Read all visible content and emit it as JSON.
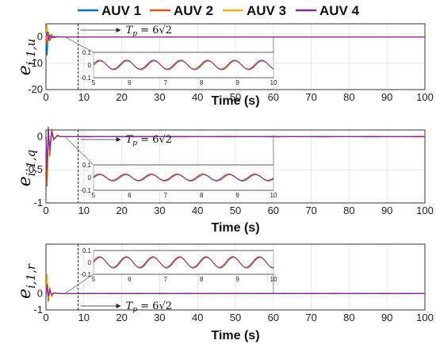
{
  "legend": {
    "placement": "top",
    "entries": [
      {
        "label": "AUV 1",
        "color": "#0072BD"
      },
      {
        "label": "AUV 2",
        "color": "#D95319"
      },
      {
        "label": "AUV 3",
        "color": "#EDB120"
      },
      {
        "label": "AUV 4",
        "color": "#7E2F8E"
      }
    ]
  },
  "annotation": {
    "text": "T",
    "sub": "p",
    "rest": " = 6√2",
    "x": 8.49
  },
  "chart_data": [
    {
      "type": "line",
      "ylabel": {
        "main": "e",
        "sub": "i,1,u"
      },
      "xlabel": "Time (s)",
      "xlim": [
        0,
        100
      ],
      "ylim": [
        -20,
        5
      ],
      "xticks": [
        0,
        10,
        20,
        30,
        40,
        50,
        60,
        70,
        80,
        90,
        100
      ],
      "yticks": [
        0,
        -10,
        -20
      ],
      "grid": true,
      "x": [
        0,
        0.3,
        0.6,
        1.0,
        1.5,
        2.0,
        3.0,
        4.0,
        6.0,
        8.49,
        20,
        40,
        60,
        80,
        100
      ],
      "series": [
        {
          "name": "AUV 1",
          "values": [
            0,
            -7,
            2,
            -1.5,
            0.8,
            -0.3,
            0.1,
            0,
            0,
            0,
            0,
            0,
            0,
            0,
            0
          ]
        },
        {
          "name": "AUV 2",
          "values": [
            0,
            -3,
            1.5,
            -0.8,
            0.5,
            -0.2,
            0.05,
            0,
            0,
            0,
            0,
            0,
            0,
            0,
            0
          ]
        },
        {
          "name": "AUV 3",
          "values": [
            0,
            5,
            -2,
            1,
            -0.5,
            0.2,
            0,
            0,
            0,
            0,
            0,
            0,
            0,
            0,
            0
          ]
        },
        {
          "name": "AUV 4",
          "values": [
            0,
            2,
            -1,
            0.5,
            -0.3,
            0.1,
            0,
            0,
            0,
            0,
            0,
            0,
            0,
            0,
            0
          ]
        }
      ],
      "inset": {
        "xlim": [
          5,
          10
        ],
        "ylim": [
          -0.1,
          0.1
        ],
        "xticks": [
          5,
          6,
          7,
          8,
          9,
          10
        ],
        "yticks": [
          0.1,
          0,
          -0.1
        ],
        "tick_labels_x": [
          "5",
          "6",
          "7",
          "8",
          "9",
          "10"
        ],
        "tick_labels_y": [
          "0.1",
          "0",
          "-0.1"
        ],
        "amplitude": 0.035,
        "period": 0.75
      }
    },
    {
      "type": "line",
      "ylabel": {
        "main": "e",
        "sub": "i,1,q"
      },
      "xlabel": "Time (s)",
      "xlim": [
        0,
        100
      ],
      "ylim": [
        -1,
        0.1
      ],
      "xticks": [
        0,
        10,
        20,
        30,
        40,
        50,
        60,
        70,
        80,
        90,
        100
      ],
      "yticks": [
        0,
        -0.5,
        -1
      ],
      "grid": true,
      "x": [
        0,
        0.3,
        0.6,
        1.0,
        1.5,
        2.0,
        3.0,
        4.0,
        6.0,
        8.49,
        20,
        40,
        60,
        80,
        100
      ],
      "series": [
        {
          "name": "AUV 1",
          "values": [
            0,
            -0.6,
            0.15,
            -0.25,
            0.1,
            -0.05,
            0.02,
            0,
            0,
            0,
            0,
            0,
            0,
            0,
            0
          ]
        },
        {
          "name": "AUV 2",
          "values": [
            0,
            -0.75,
            0.1,
            -0.3,
            0.12,
            -0.05,
            0.02,
            0,
            0,
            0,
            0,
            0,
            0,
            0,
            0
          ]
        },
        {
          "name": "AUV 3",
          "values": [
            0,
            -0.4,
            0.08,
            -0.15,
            0.06,
            -0.03,
            0.01,
            0,
            0,
            0,
            0,
            0,
            0,
            0,
            0
          ]
        },
        {
          "name": "AUV 4",
          "values": [
            0,
            -0.5,
            0.12,
            -0.2,
            0.08,
            -0.04,
            0.01,
            0,
            0,
            0,
            0,
            0,
            0,
            0,
            0
          ]
        }
      ],
      "inset": {
        "xlim": [
          5,
          10
        ],
        "ylim": [
          -0.1,
          0.1
        ],
        "xticks": [
          5,
          6,
          7,
          8,
          9,
          10
        ],
        "yticks": [
          0.1,
          0,
          -0.1
        ],
        "tick_labels_x": [
          "5",
          "6",
          "7",
          "8",
          "9",
          "10"
        ],
        "tick_labels_y": [
          "0.1",
          "0",
          "-0.1"
        ],
        "amplitude": 0.025,
        "period": 0.72
      }
    },
    {
      "type": "line",
      "ylabel": {
        "main": "e",
        "sub": "i,1,r"
      },
      "xlabel": "Time (s)",
      "xlim": [
        0,
        100
      ],
      "ylim": [
        -1,
        3
      ],
      "xticks": [
        0,
        10,
        20,
        30,
        40,
        50,
        60,
        70,
        80,
        90,
        100
      ],
      "yticks": [
        0,
        -1
      ],
      "grid": true,
      "x": [
        0,
        0.3,
        0.6,
        1.0,
        1.5,
        2.0,
        3.0,
        4.0,
        6.0,
        8.49,
        20,
        40,
        60,
        80,
        100
      ],
      "series": [
        {
          "name": "AUV 1",
          "values": [
            0,
            0.8,
            -0.4,
            0.3,
            -0.15,
            0.05,
            0.02,
            0,
            0,
            0,
            0,
            0,
            0,
            0,
            0
          ]
        },
        {
          "name": "AUV 2",
          "values": [
            0,
            0.4,
            -0.5,
            0.2,
            -0.1,
            0.04,
            0.01,
            0,
            0,
            0,
            0,
            0,
            0,
            0,
            0
          ]
        },
        {
          "name": "AUV 3",
          "values": [
            0,
            1.2,
            -0.3,
            0.4,
            -0.2,
            0.06,
            0.02,
            0,
            0,
            0,
            0,
            0,
            0,
            0,
            0
          ]
        },
        {
          "name": "AUV 4",
          "values": [
            0,
            0.6,
            -0.2,
            0.25,
            -0.1,
            0.03,
            0.01,
            0,
            0,
            0,
            0,
            0,
            0,
            0,
            0
          ]
        }
      ],
      "inset": {
        "xlim": [
          5,
          10
        ],
        "ylim": [
          -0.1,
          0.1
        ],
        "xticks": [
          5,
          6,
          7,
          8,
          9,
          10
        ],
        "yticks": [
          0.1,
          0,
          -0.1
        ],
        "tick_labels_x": [
          "5",
          "6",
          "7",
          "8",
          "9",
          "10"
        ],
        "tick_labels_y": [
          "0.1",
          "0",
          "-0.1"
        ],
        "amplitude": 0.045,
        "period": 0.74
      }
    }
  ]
}
